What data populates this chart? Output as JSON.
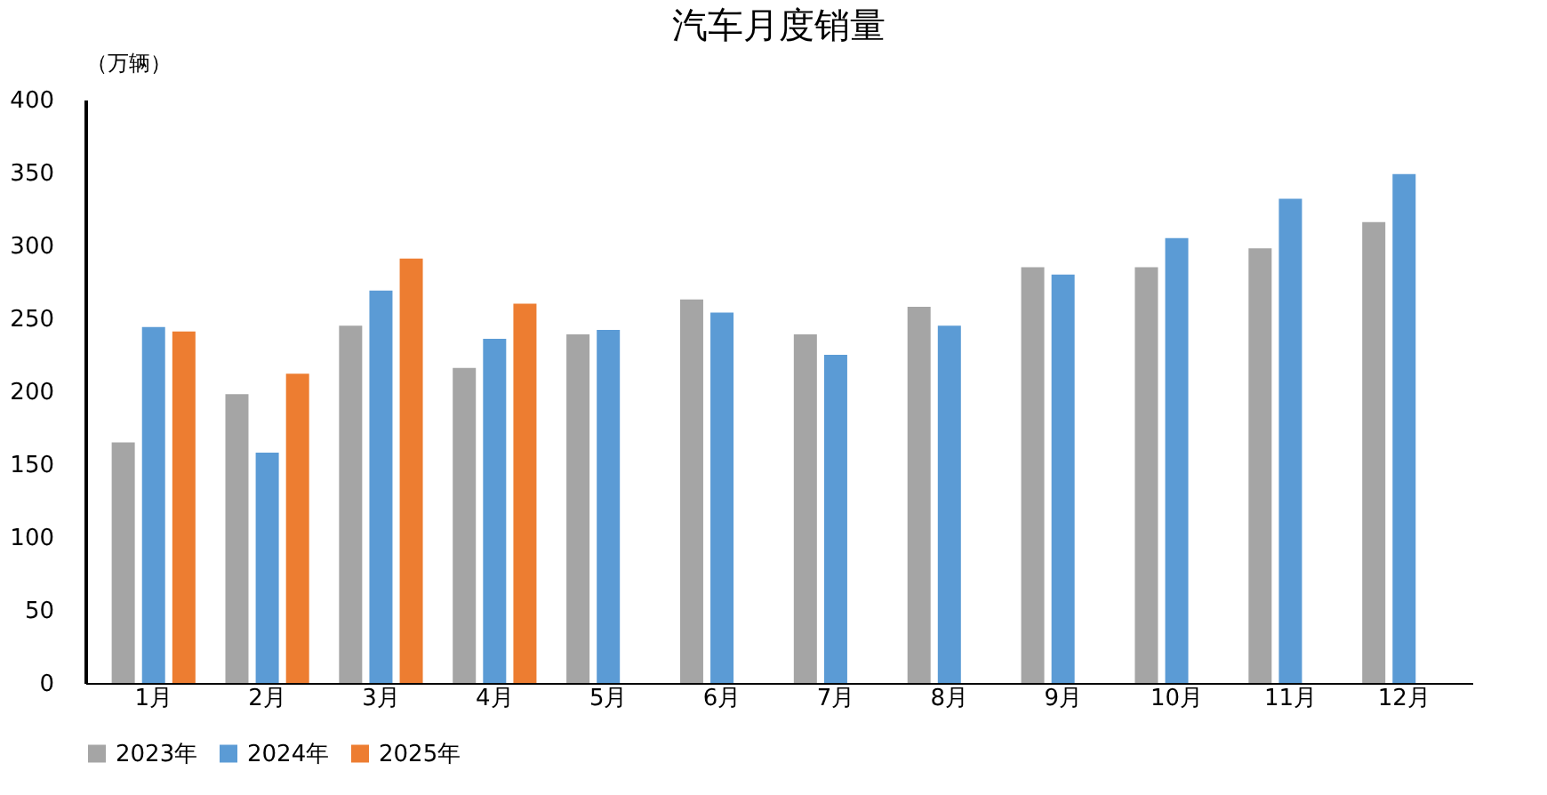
{
  "chart_data": {
    "type": "bar",
    "title": "汽车月度销量",
    "ylabel": "（万辆）",
    "categories": [
      "1月",
      "2月",
      "3月",
      "4月",
      "5月",
      "6月",
      "7月",
      "8月",
      "9月",
      "10月",
      "11月",
      "12月"
    ],
    "series": [
      {
        "name": "2023年",
        "color": "#a5a5a5",
        "values": [
          165,
          198,
          245,
          216,
          239,
          263,
          239,
          258,
          285,
          285,
          298,
          316
        ]
      },
      {
        "name": "2024年",
        "color": "#5b9bd5",
        "values": [
          244,
          158,
          269,
          236,
          242,
          254,
          225,
          245,
          280,
          305,
          332,
          349
        ]
      },
      {
        "name": "2025年",
        "color": "#ed7d31",
        "values": [
          241,
          212,
          291,
          260,
          null,
          null,
          null,
          null,
          null,
          null,
          null,
          null
        ]
      }
    ],
    "ylim": [
      0,
      400
    ],
    "yticks": [
      0,
      50,
      100,
      150,
      200,
      250,
      300,
      350,
      400
    ],
    "grid": false,
    "legend": "bottom"
  }
}
